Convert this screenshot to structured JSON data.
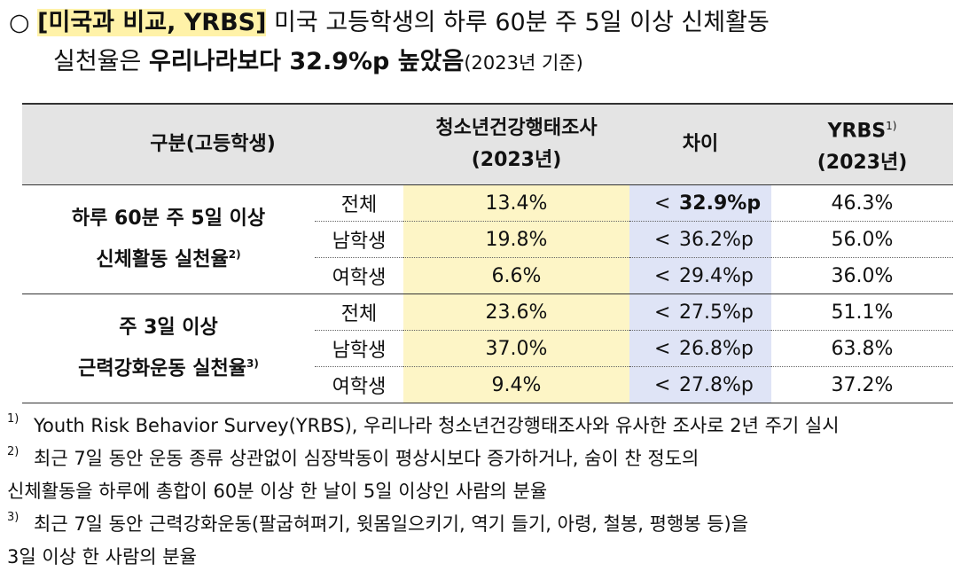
{
  "header": {
    "bullet": "○",
    "tag": "[미국과 비교, YRBS]",
    "line1": " 미국 고등학생의 하루 60분 주 5일 이상 신체활동",
    "line2": "실천율은 ",
    "bold": "우리나라보다 32.9%p 높았음",
    "note": "(2023년 기준)"
  },
  "table": {
    "columns": {
      "category": "구분(고등학생)",
      "kyrbs": "청소년건강행태조사",
      "kyrbs_year": "(2023년)",
      "diff": "차이",
      "yrbs": "YRBS",
      "yrbs_mark": "1)",
      "yrbs_year": "(2023년)"
    },
    "groups": [
      {
        "label1": "하루 60분 주 5일 이상",
        "label2": "신체활동 실천율",
        "mark": "2)",
        "rows": [
          {
            "sub": "전체",
            "kyrbs": "13.4%",
            "op": "<",
            "diff": "32.9%p",
            "yrbs": "46.3%"
          },
          {
            "sub": "남학생",
            "kyrbs": "19.8%",
            "op": "<",
            "diff": "36.2%p",
            "yrbs": "56.0%"
          },
          {
            "sub": "여학생",
            "kyrbs": "6.6%",
            "op": "<",
            "diff": "29.4%p",
            "yrbs": "36.0%"
          }
        ]
      },
      {
        "label1": "주 3일 이상",
        "label2": "근력강화운동 실천율",
        "mark": "3)",
        "rows": [
          {
            "sub": "전체",
            "kyrbs": "23.6%",
            "op": "<",
            "diff": "27.5%p",
            "yrbs": "51.1%"
          },
          {
            "sub": "남학생",
            "kyrbs": "37.0%",
            "op": "<",
            "diff": "26.8%p",
            "yrbs": "63.8%"
          },
          {
            "sub": "여학생",
            "kyrbs": "9.4%",
            "op": "<",
            "diff": "27.8%p",
            "yrbs": "37.2%"
          }
        ]
      }
    ]
  },
  "footnotes": [
    {
      "mark": "1)",
      "lines": [
        "Youth Risk Behavior Survey(YRBS), 우리나라 청소년건강행태조사와 유사한 조사로 2년 주기 실시"
      ]
    },
    {
      "mark": "2)",
      "lines": [
        "최근 7일 동안 운동 종류 상관없이 심장박동이 평상시보다 증가하거나, 숨이 찬 정도의",
        "신체활동을 하루에 총합이 60분 이상 한 날이 5일 이상인 사람의 분율"
      ]
    },
    {
      "mark": "3)",
      "lines": [
        "최근 7일 동안 근력강화운동(팔굽혀펴기, 윗몸일으키기, 역기 들기, 아령, 철봉, 평행봉 등)을",
        "3일 이상 한 사람의 분율"
      ]
    }
  ]
}
